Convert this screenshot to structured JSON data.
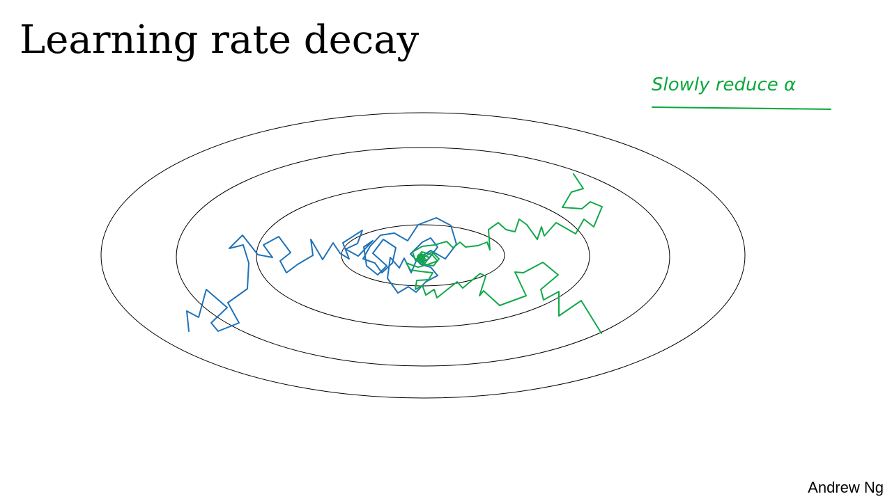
{
  "slide": {
    "title": "Learning rate decay",
    "author": "Andrew Ng"
  },
  "annotation": {
    "text": "Slowly reduce α",
    "color": "#0aa83c"
  },
  "paths": {
    "fixed_rate_color": "#1f72b8",
    "decaying_rate_color": "#12a84a"
  },
  "contour_color": "#000000"
}
